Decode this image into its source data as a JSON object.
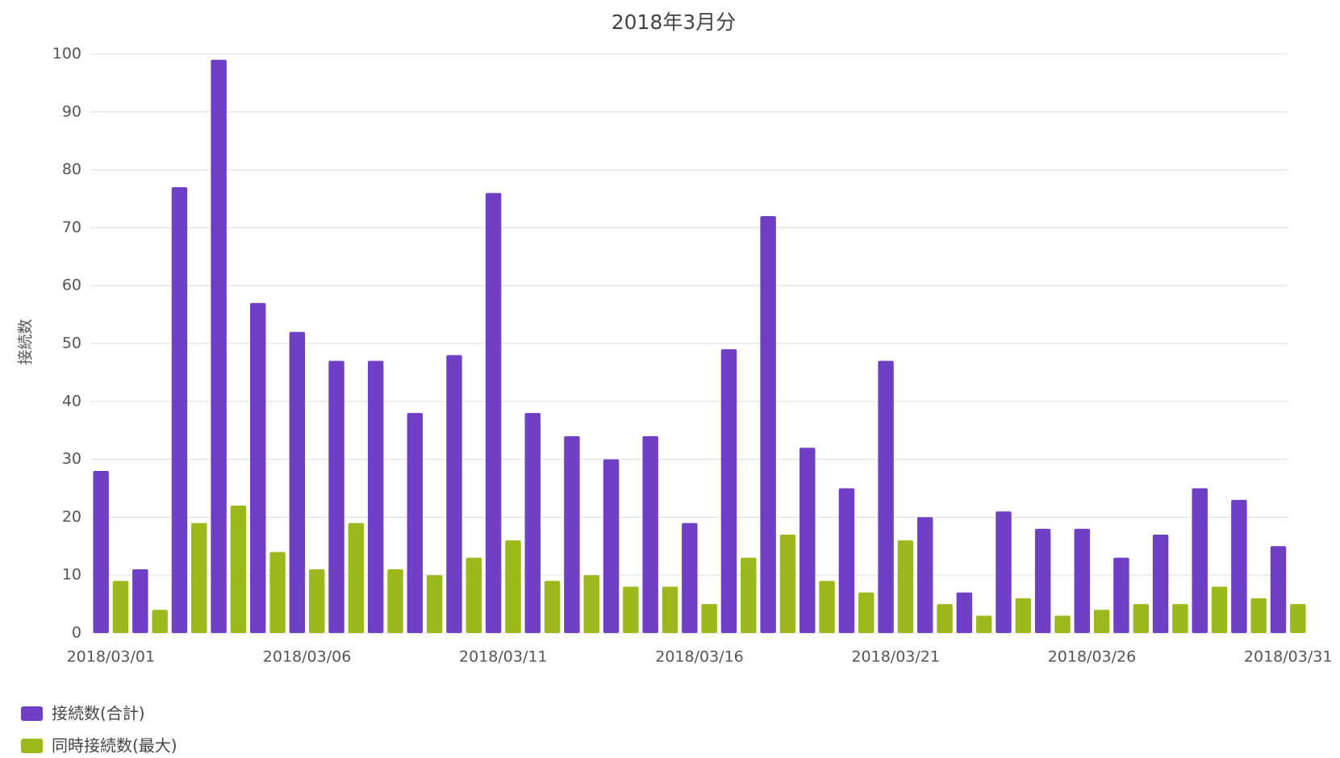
{
  "chart_data": {
    "type": "bar",
    "title": "2018年3月分",
    "y_label": "接続数",
    "categories": [
      "2018/03/01",
      null,
      null,
      null,
      null,
      "2018/03/06",
      null,
      null,
      null,
      null,
      "2018/03/11",
      null,
      null,
      null,
      null,
      "2018/03/16",
      null,
      null,
      null,
      null,
      "2018/03/21",
      null,
      null,
      null,
      null,
      "2018/03/26",
      null,
      null,
      null,
      null,
      "2018/03/31"
    ],
    "series": [
      {
        "name": "接続数(合計)",
        "color": "#6f3fc6",
        "values": [
          28,
          11,
          77,
          99,
          57,
          52,
          47,
          47,
          38,
          48,
          76,
          38,
          34,
          30,
          34,
          19,
          49,
          72,
          32,
          25,
          47,
          20,
          7,
          21,
          18,
          18,
          13,
          17,
          25,
          23,
          15
        ]
      },
      {
        "name": "同時接続数(最大)",
        "color": "#9cb81c",
        "values": [
          9,
          4,
          19,
          22,
          14,
          11,
          19,
          11,
          10,
          13,
          16,
          9,
          10,
          8,
          8,
          5,
          13,
          17,
          9,
          7,
          16,
          5,
          3,
          6,
          3,
          4,
          5,
          5,
          8,
          6,
          5
        ]
      }
    ],
    "ylim": [
      0,
      100
    ],
    "yticks": [
      0,
      10,
      20,
      30,
      40,
      50,
      60,
      70,
      80,
      90,
      100
    ],
    "grid": true,
    "legend": "bottom-left"
  }
}
